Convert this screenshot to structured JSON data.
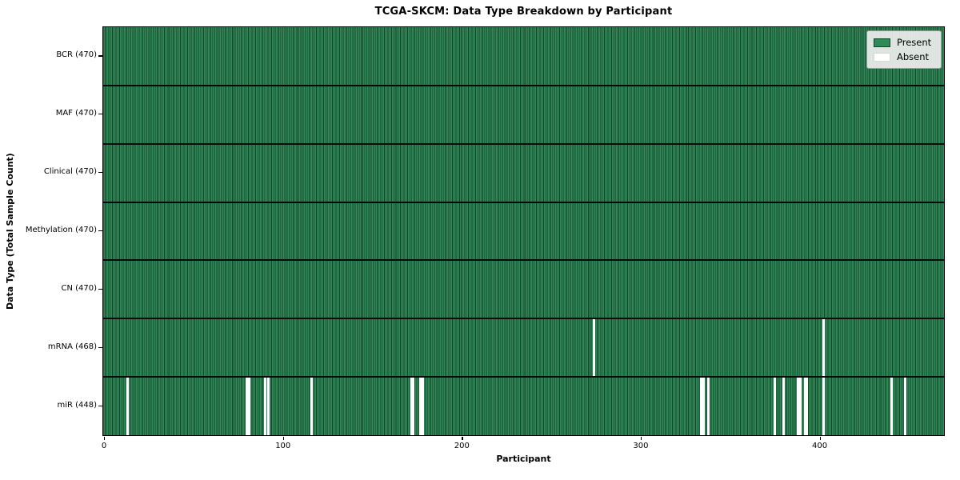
{
  "chart_data": {
    "type": "heatmap",
    "title": "TCGA-SKCM: Data Type Breakdown by Participant",
    "xlabel": "Participant",
    "ylabel": "Data Type (Total Sample Count)",
    "n_participants": 470,
    "x_ticks": [
      0,
      100,
      200,
      300,
      400
    ],
    "legend_position": "upper right",
    "legend": [
      {
        "label": "Present",
        "color": "#2e8b57"
      },
      {
        "label": "Absent",
        "color": "#ffffff"
      }
    ],
    "colors": {
      "present": "#2e8b57",
      "edge": "#17432c",
      "absent": "#ffffff"
    },
    "rows": [
      {
        "label": "BCR (470)",
        "total": 470,
        "absent": []
      },
      {
        "label": "MAF (470)",
        "total": 470,
        "absent": []
      },
      {
        "label": "Clinical (470)",
        "total": 470,
        "absent": []
      },
      {
        "label": "Methylation (470)",
        "total": 470,
        "absent": []
      },
      {
        "label": "CN (470)",
        "total": 470,
        "absent": []
      },
      {
        "label": "mRNA (468)",
        "total": 468,
        "absent": [
          274,
          402
        ]
      },
      {
        "label": "miR (448)",
        "total": 448,
        "absent": [
          13,
          80,
          81,
          90,
          92,
          116,
          172,
          173,
          177,
          178,
          334,
          335,
          338,
          375,
          380,
          388,
          389,
          392,
          393,
          402,
          440,
          448
        ]
      }
    ]
  }
}
